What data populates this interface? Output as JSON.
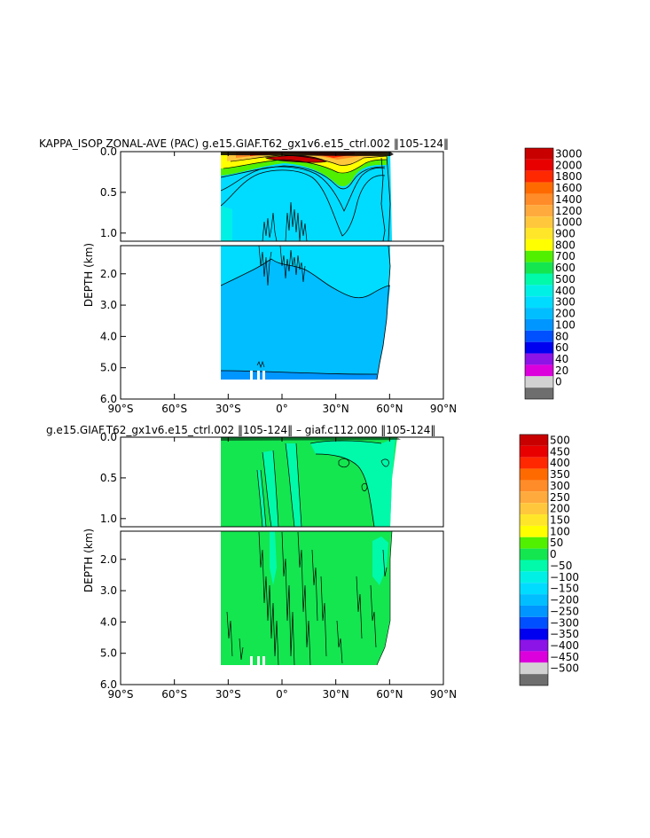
{
  "chart_data": [
    {
      "type": "heatmap",
      "title": "KAPPA_ISOP ZONAL-AVE (PAC) g.e15.GIAF.T62_gx1v6.e15_ctrl.002 ‖105-124‖",
      "ylabel": "DEPTH (km)",
      "x_ticks": [
        "90°S",
        "60°S",
        "30°S",
        "0°",
        "30°N",
        "60°N",
        "90°N"
      ],
      "y_ticks_upper": [
        "0.0",
        "0.5",
        "1.0"
      ],
      "y_ticks_lower": [
        "2.0",
        "3.0",
        "4.0",
        "5.0",
        "6.0"
      ],
      "xlim": [
        -90,
        90
      ],
      "ylim": [
        6.0,
        0.0
      ],
      "data_extent_x": [
        -34,
        62
      ],
      "legend": {
        "labels": [
          "3000",
          "2000",
          "1800",
          "1600",
          "1400",
          "1200",
          "1000",
          "900",
          "800",
          "700",
          "600",
          "500",
          "400",
          "300",
          "200",
          "100",
          "80",
          "60",
          "40",
          "20",
          "0"
        ],
        "colors": [
          "#c80000",
          "#e80000",
          "#ff2800",
          "#ff6a00",
          "#ff8c28",
          "#ffaa3c",
          "#ffc83c",
          "#ffe628",
          "#ffff00",
          "#50f000",
          "#14e650",
          "#00faaa",
          "#00f0e6",
          "#00dcff",
          "#00beff",
          "#0096ff",
          "#0050ff",
          "#0000f0",
          "#8c14e6",
          "#dc00dc",
          "#d2d2d2",
          "#6e6e6e"
        ]
      }
    },
    {
      "type": "heatmap",
      "title": "g.e15.GIAF.T62_gx1v6.e15_ctrl.002 ‖105-124‖ – giaf.c112.000 ‖105-124‖",
      "ylabel": "DEPTH (km)",
      "x_ticks": [
        "90°S",
        "60°S",
        "30°S",
        "0°",
        "30°N",
        "60°N",
        "90°N"
      ],
      "y_ticks_upper": [
        "0.0",
        "0.5",
        "1.0"
      ],
      "y_ticks_lower": [
        "2.0",
        "3.0",
        "4.0",
        "5.0",
        "6.0"
      ],
      "xlim": [
        -90,
        90
      ],
      "ylim": [
        6.0,
        0.0
      ],
      "data_extent_x": [
        -34,
        62
      ],
      "legend": {
        "labels": [
          "500",
          "450",
          "400",
          "350",
          "300",
          "250",
          "200",
          "150",
          "100",
          "50",
          "0",
          "−50",
          "−100",
          "−150",
          "−200",
          "−250",
          "−300",
          "−350",
          "−400",
          "−450",
          "−500"
        ],
        "colors": [
          "#c80000",
          "#e80000",
          "#ff2800",
          "#ff6a00",
          "#ff8c28",
          "#ffaa3c",
          "#ffc83c",
          "#ffe628",
          "#ffff00",
          "#50f000",
          "#14e650",
          "#00faaa",
          "#00f0e6",
          "#00dcff",
          "#00beff",
          "#0096ff",
          "#0050ff",
          "#0000f0",
          "#8c14e6",
          "#dc00dc",
          "#d2d2d2",
          "#6e6e6e"
        ]
      }
    }
  ]
}
